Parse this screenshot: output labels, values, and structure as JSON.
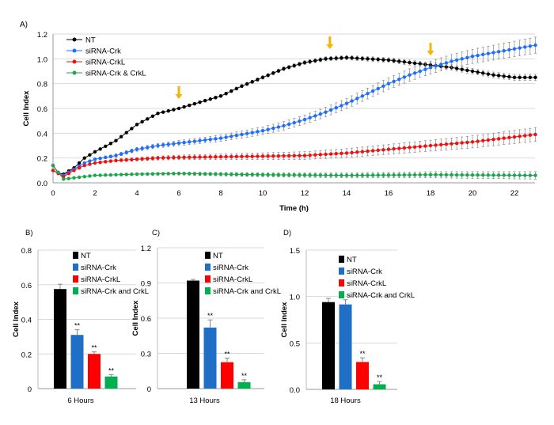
{
  "chart_data": [
    {
      "type": "line",
      "panel_label": "A)",
      "title": "",
      "xlabel": "Time (h)",
      "ylabel": "Cell Index",
      "xlim": [
        0,
        23
      ],
      "ylim": [
        0,
        1.2
      ],
      "xticks": [
        "0",
        "2",
        "4",
        "6",
        "8",
        "10",
        "12",
        "14",
        "16",
        "18",
        "20",
        "22"
      ],
      "yticks": [
        "0.0",
        "0.2",
        "0.4",
        "0.6",
        "0.8",
        "1.0",
        "1.2"
      ],
      "grid": true,
      "legend": "top-left",
      "annotations": [
        {
          "type": "arrow",
          "x": 6,
          "color": "#f5b400"
        },
        {
          "type": "arrow",
          "x": 13.2,
          "color": "#f5b400"
        },
        {
          "type": "arrow",
          "x": 18,
          "color": "#f5b400"
        }
      ],
      "series": [
        {
          "name": "NT",
          "color": "#000000",
          "error_end": 0.02,
          "points": [
            [
              0,
              0.14
            ],
            [
              0.25,
              0.08
            ],
            [
              0.5,
              0.07
            ],
            [
              1,
              0.12
            ],
            [
              1.5,
              0.2
            ],
            [
              2,
              0.25
            ],
            [
              3,
              0.34
            ],
            [
              4,
              0.47
            ],
            [
              5,
              0.56
            ],
            [
              6,
              0.6
            ],
            [
              7,
              0.65
            ],
            [
              8,
              0.7
            ],
            [
              9,
              0.78
            ],
            [
              10,
              0.85
            ],
            [
              11,
              0.92
            ],
            [
              12,
              0.97
            ],
            [
              13,
              1.0
            ],
            [
              14,
              1.01
            ],
            [
              15,
              1.0
            ],
            [
              16,
              0.99
            ],
            [
              17,
              0.97
            ],
            [
              18,
              0.95
            ],
            [
              19,
              0.93
            ],
            [
              20,
              0.9
            ],
            [
              21,
              0.87
            ],
            [
              22,
              0.85
            ],
            [
              23,
              0.85
            ]
          ]
        },
        {
          "name": "siRNA-Crk",
          "color": "#1f6fff",
          "error_end": 0.06,
          "points": [
            [
              0,
              0.1
            ],
            [
              0.5,
              0.06
            ],
            [
              1,
              0.11
            ],
            [
              1.5,
              0.16
            ],
            [
              2,
              0.19
            ],
            [
              3,
              0.22
            ],
            [
              4,
              0.27
            ],
            [
              5,
              0.3
            ],
            [
              6,
              0.32
            ],
            [
              7,
              0.34
            ],
            [
              8,
              0.36
            ],
            [
              9,
              0.39
            ],
            [
              10,
              0.42
            ],
            [
              11,
              0.46
            ],
            [
              12,
              0.51
            ],
            [
              13,
              0.57
            ],
            [
              14,
              0.64
            ],
            [
              15,
              0.72
            ],
            [
              16,
              0.8
            ],
            [
              17,
              0.87
            ],
            [
              18,
              0.93
            ],
            [
              19,
              0.98
            ],
            [
              20,
              1.02
            ],
            [
              21,
              1.05
            ],
            [
              22,
              1.08
            ],
            [
              23,
              1.11
            ]
          ]
        },
        {
          "name": "siRNA-CrkL",
          "color": "#ee1111",
          "error_end": 0.05,
          "points": [
            [
              0,
              0.1
            ],
            [
              0.5,
              0.05
            ],
            [
              1,
              0.1
            ],
            [
              1.5,
              0.14
            ],
            [
              2,
              0.16
            ],
            [
              3,
              0.18
            ],
            [
              4,
              0.19
            ],
            [
              5,
              0.2
            ],
            [
              6,
              0.205
            ],
            [
              8,
              0.21
            ],
            [
              10,
              0.215
            ],
            [
              12,
              0.22
            ],
            [
              14,
              0.24
            ],
            [
              16,
              0.27
            ],
            [
              18,
              0.3
            ],
            [
              20,
              0.33
            ],
            [
              22,
              0.37
            ],
            [
              23,
              0.39
            ]
          ]
        },
        {
          "name": "siRNA-Crk & CrkL",
          "color": "#1aa64a",
          "error_end": 0.025,
          "points": [
            [
              0,
              0.14
            ],
            [
              0.5,
              0.03
            ],
            [
              1,
              0.04
            ],
            [
              2,
              0.06
            ],
            [
              4,
              0.07
            ],
            [
              6,
              0.075
            ],
            [
              10,
              0.065
            ],
            [
              14,
              0.06
            ],
            [
              18,
              0.065
            ],
            [
              23,
              0.06
            ]
          ]
        }
      ]
    },
    {
      "type": "bar",
      "panel_label": "B)",
      "xlabel": "6 Hours",
      "ylabel": "Cell Index",
      "ylim": [
        0,
        0.8
      ],
      "yticks": [
        "0",
        "0.2",
        "0.4",
        "0.6",
        "0.8"
      ],
      "categories": [
        "NT",
        "siRNA-Crk",
        "siRNA-CrkL",
        "siRNA-Crk and CrkL"
      ],
      "values": [
        0.575,
        0.31,
        0.2,
        0.07
      ],
      "errors": [
        0.028,
        0.03,
        0.012,
        0.01
      ],
      "significance": [
        "",
        "**",
        "**",
        "**"
      ],
      "colors": [
        "#000000",
        "#1f6fc6",
        "#ff0000",
        "#00b050"
      ]
    },
    {
      "type": "bar",
      "panel_label": "C)",
      "xlabel": "13 Hours",
      "ylabel": "Cell Index",
      "ylim": [
        0,
        1.2
      ],
      "yticks": [
        "0",
        "0.3",
        "0.6",
        "0.9",
        "1.2"
      ],
      "categories": [
        "NT",
        "siRNA-Crk",
        "siRNA-CrkL",
        "siRNA-Crk and CrkL"
      ],
      "values": [
        0.92,
        0.52,
        0.225,
        0.055
      ],
      "errors": [
        0.01,
        0.065,
        0.035,
        0.02
      ],
      "significance": [
        "",
        "**",
        "**",
        "**"
      ],
      "colors": [
        "#000000",
        "#1f6fc6",
        "#ff0000",
        "#00b050"
      ]
    },
    {
      "type": "bar",
      "panel_label": "D)",
      "xlabel": "18 Hours",
      "ylabel": "Cell Index",
      "ylim": [
        0,
        1.5
      ],
      "yticks": [
        "0.0",
        "0.5",
        "1.0",
        "1.5"
      ],
      "categories": [
        "NT",
        "siRNA-Crk",
        "siRNA-CrkL",
        "siRNA-Crk and CrkL"
      ],
      "values": [
        0.94,
        0.915,
        0.295,
        0.055
      ],
      "errors": [
        0.04,
        0.05,
        0.045,
        0.03
      ],
      "significance": [
        "",
        "",
        "**",
        "**"
      ],
      "colors": [
        "#000000",
        "#1f6fc6",
        "#ff0000",
        "#00b050"
      ]
    }
  ]
}
